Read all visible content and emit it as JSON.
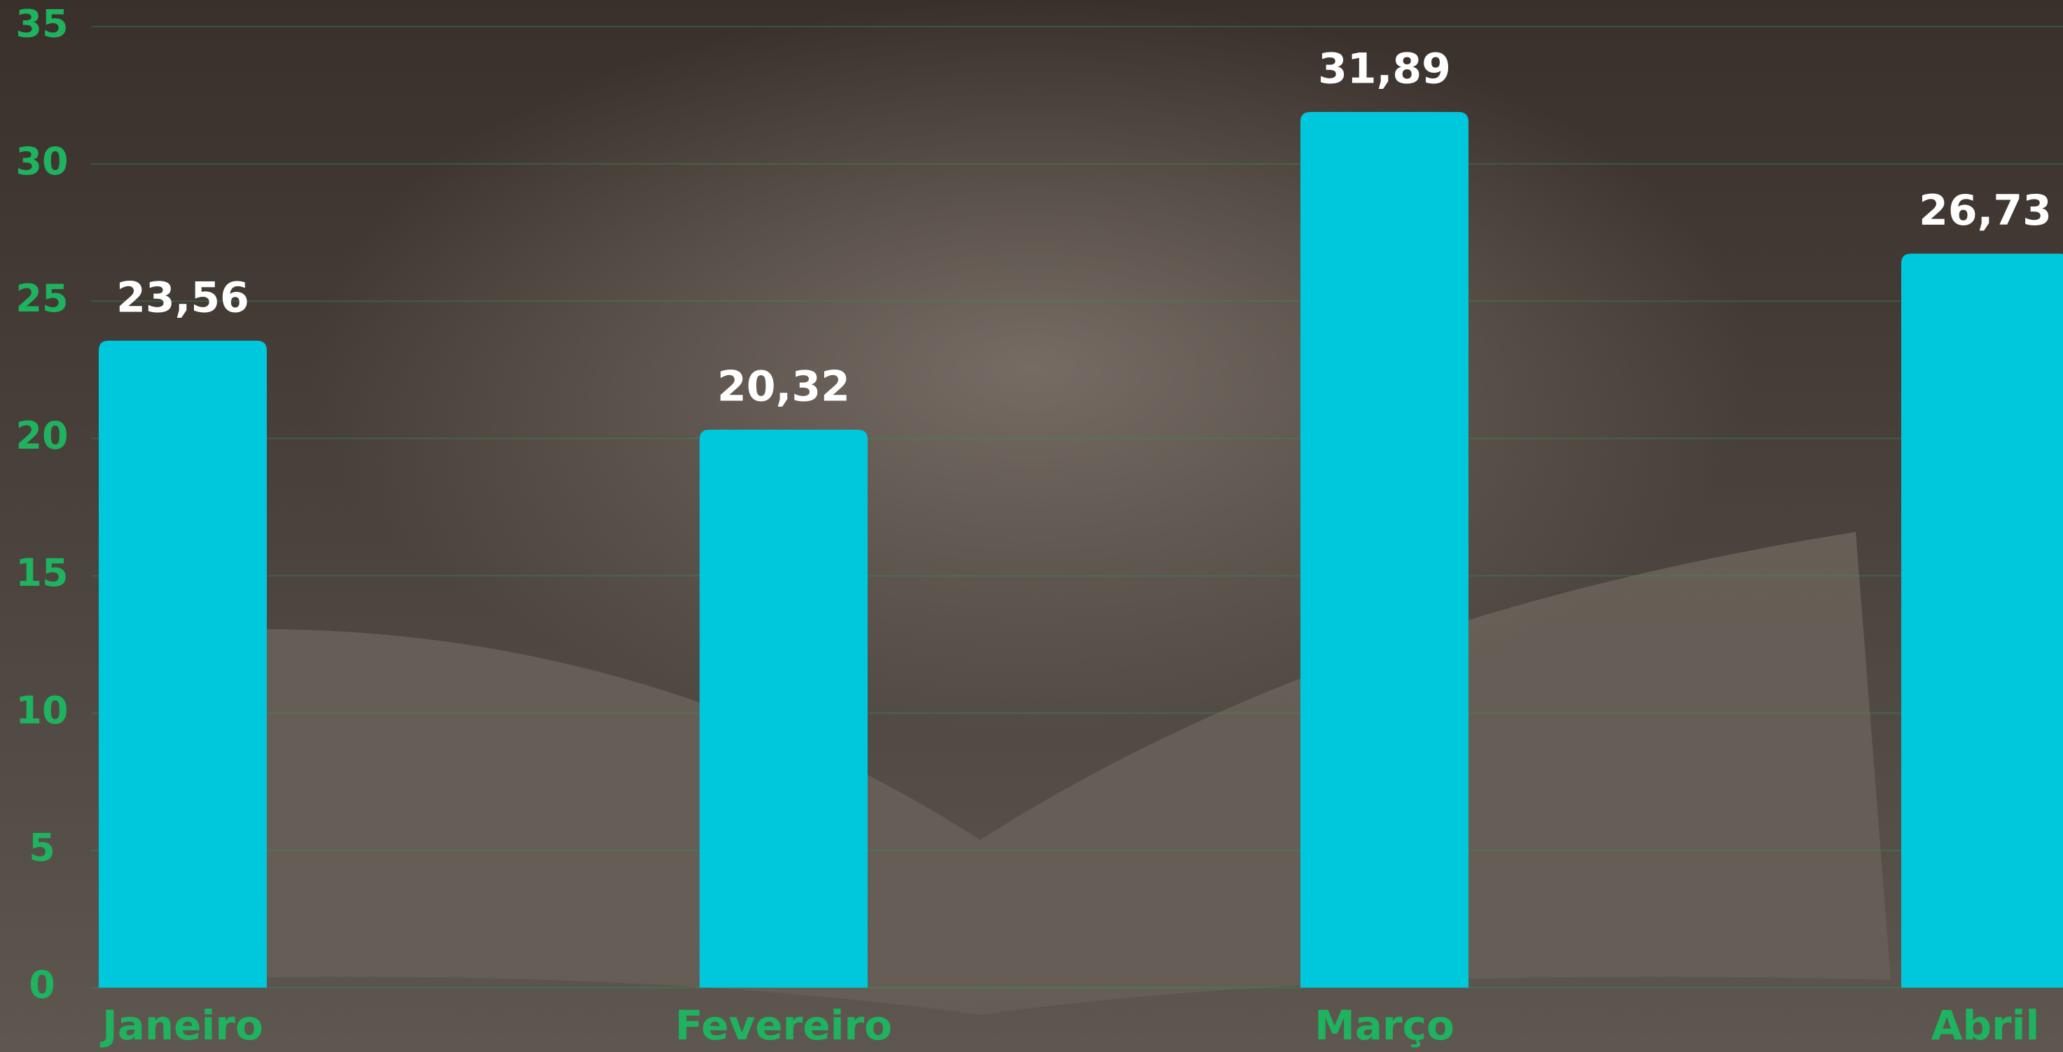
{
  "chart_data": {
    "type": "bar",
    "categories": [
      "Janeiro",
      "Fevereiro",
      "Março",
      "Abril"
    ],
    "values": [
      23.56,
      20.32,
      31.89,
      26.73
    ],
    "value_labels": [
      "23,56",
      "20,32",
      "31,89",
      "26,73"
    ],
    "color": "#00c8dc",
    "ylim": [
      0,
      35
    ],
    "yticks": [
      0,
      5,
      10,
      15,
      20,
      25,
      30,
      35
    ],
    "grid": true
  }
}
